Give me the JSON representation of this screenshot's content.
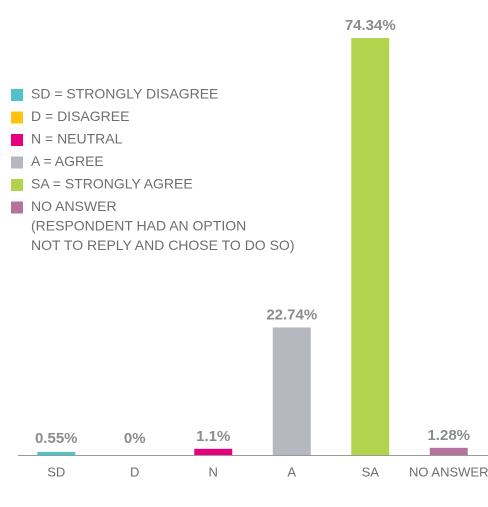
{
  "chart_data": {
    "type": "bar",
    "categories": [
      "SD",
      "D",
      "N",
      "A",
      "SA",
      "NO ANSWER"
    ],
    "values": [
      0.55,
      0,
      1.1,
      22.74,
      74.34,
      1.28
    ],
    "value_labels": [
      "0.55%",
      "0%",
      "1.1%",
      "22.74%",
      "74.34%",
      "1.28%"
    ],
    "colors": [
      "#4fc3c9",
      "#ffc20e",
      "#e6007e",
      "#b5b8be",
      "#b1d34e",
      "#b5739d"
    ],
    "legend": [
      [
        "SD = STRONGLY DISAGREE"
      ],
      [
        "D = DISAGREE"
      ],
      [
        "N = NEUTRAL"
      ],
      [
        "A = AGREE"
      ],
      [
        "SA = STRONGLY AGREE"
      ],
      [
        "NO ANSWER",
        "(RESPONDENT HAD AN OPTION",
        "NOT TO REPLY AND CHOSE TO DO SO)"
      ]
    ]
  }
}
